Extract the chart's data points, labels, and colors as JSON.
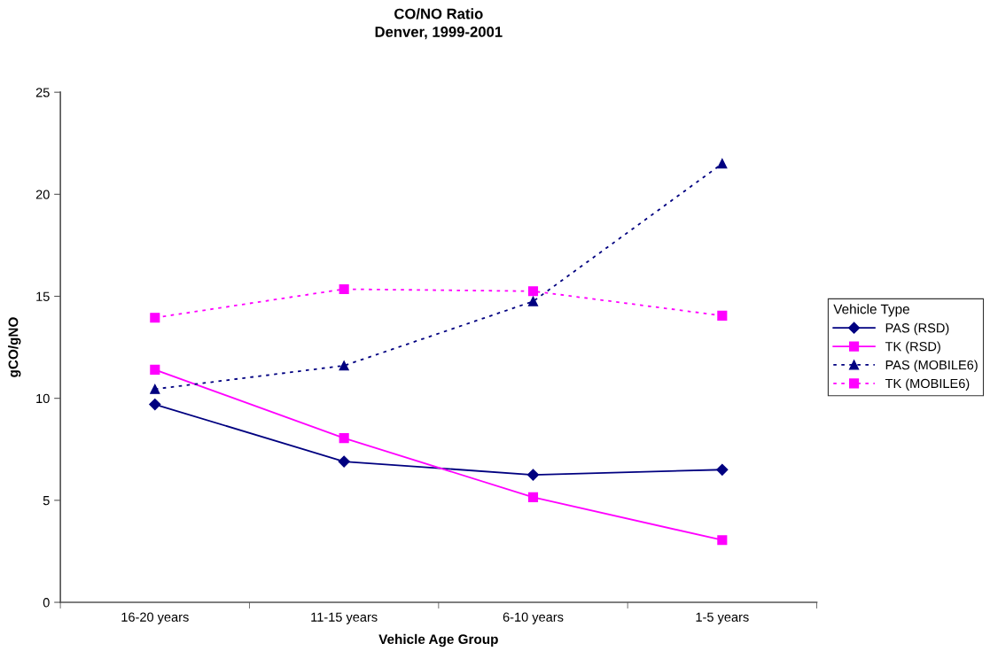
{
  "chart_data": {
    "type": "line",
    "title": "CO/NO Ratio\nDenver, 1999-2001",
    "xlabel": "Vehicle Age Group",
    "ylabel": "gCO/gNO",
    "legend_title": "Vehicle Type",
    "legend": "right",
    "categories": [
      "16-20 years",
      "11-15 years",
      "6-10 years",
      "1-5 years"
    ],
    "ylim": [
      0,
      25
    ],
    "yticks": [
      0,
      5,
      10,
      15,
      20,
      25
    ],
    "grid": false,
    "series": [
      {
        "name": "PAS (RSD)",
        "color": "#000080",
        "marker": "diamond",
        "line_style": "solid",
        "values": [
          9.7,
          6.9,
          6.25,
          6.5
        ]
      },
      {
        "name": "TK (RSD)",
        "color": "#ff00ff",
        "marker": "square",
        "line_style": "solid",
        "values": [
          11.4,
          8.05,
          5.15,
          3.05
        ]
      },
      {
        "name": "PAS (MOBILE6)",
        "color": "#000080",
        "marker": "triangle",
        "line_style": "dotted",
        "values": [
          10.45,
          11.6,
          14.75,
          21.5
        ]
      },
      {
        "name": "TK (MOBILE6)",
        "color": "#ff00ff",
        "marker": "square",
        "line_style": "dotted",
        "values": [
          13.95,
          15.35,
          15.25,
          14.05
        ]
      }
    ]
  }
}
